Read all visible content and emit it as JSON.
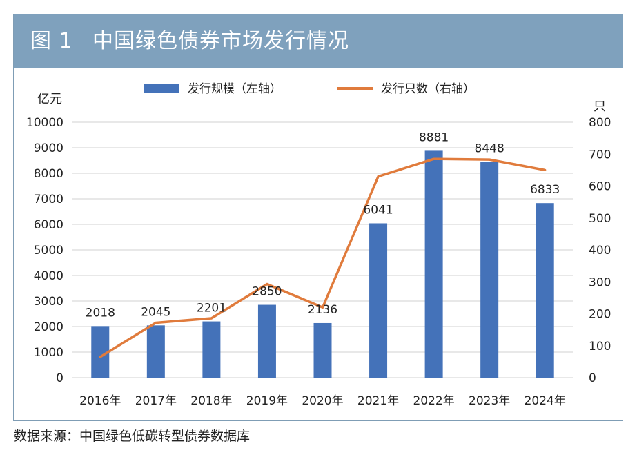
{
  "figure": {
    "label": "图 1",
    "title": "中国绿色债券市场发行情况"
  },
  "source": "数据来源：中国绿色低碳转型债券数据库",
  "colors": {
    "header_bg": "#7fa1bd",
    "bar": "#4472b9",
    "line": "#e07b3c",
    "grid": "#d9d9d9"
  },
  "chart_data": {
    "type": "bar+line",
    "categories": [
      "2016年",
      "2017年",
      "2018年",
      "2019年",
      "2020年",
      "2021年",
      "2022年",
      "2023年",
      "2024年"
    ],
    "series": [
      {
        "name": "发行规模（左轴）",
        "type": "bar",
        "axis": "left",
        "values": [
          2018,
          2045,
          2201,
          2850,
          2136,
          6041,
          8881,
          8448,
          6833
        ],
        "labels": [
          "2018",
          "2045",
          "2201",
          "2850",
          "2136",
          "6041",
          "8881",
          "8448",
          "6833"
        ]
      },
      {
        "name": "发行只数（右轴）",
        "type": "line",
        "axis": "right",
        "values": [
          65,
          172,
          186,
          293,
          220,
          630,
          685,
          683,
          650
        ]
      }
    ],
    "left_axis": {
      "unit": "亿元",
      "range": [
        0,
        10000
      ],
      "ticks": [
        "0",
        "1000",
        "2000",
        "3000",
        "4000",
        "5000",
        "6000",
        "7000",
        "8000",
        "9000",
        "10000"
      ]
    },
    "right_axis": {
      "unit": "只",
      "range": [
        0,
        800
      ],
      "ticks": [
        "0",
        "100",
        "200",
        "300",
        "400",
        "500",
        "600",
        "700",
        "800"
      ]
    },
    "legend": {
      "position": "top",
      "bar_label": "发行规模（左轴）",
      "line_label": "发行只数（右轴）"
    },
    "grid": true
  }
}
